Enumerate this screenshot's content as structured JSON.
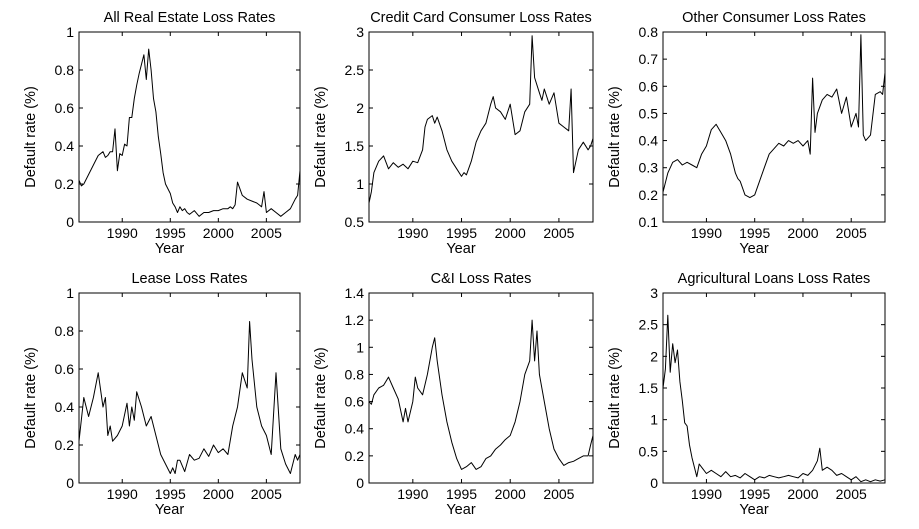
{
  "chart_data": [
    {
      "type": "line",
      "title": "All Real Estate Loss Rates",
      "xlabel": "Year",
      "ylabel": "Default rate (%)",
      "xlim": [
        1985.5,
        2008.5
      ],
      "ylim": [
        0,
        1
      ],
      "xticks": [
        1990,
        1995,
        2000,
        2005
      ],
      "xtick_labels": [
        "1990",
        "1995",
        "2000",
        "2005"
      ],
      "yticks": [
        0,
        0.2,
        0.4,
        0.6,
        0.8,
        1
      ],
      "ytick_labels": [
        "0",
        "0.2",
        "0.4",
        "0.6",
        "0.8",
        "1"
      ],
      "series": [
        {
          "x": [
            1985.5,
            1985.75,
            1986,
            1986.5,
            1987,
            1987.5,
            1988,
            1988.25,
            1988.5,
            1988.75,
            1989,
            1989.25,
            1989.5,
            1989.75,
            1990,
            1990.25,
            1990.5,
            1990.75,
            1991,
            1991.25,
            1991.5,
            1991.75,
            1992,
            1992.25,
            1992.5,
            1992.75,
            1993,
            1993.25,
            1993.5,
            1993.75,
            1994,
            1994.25,
            1994.5,
            1995,
            1995.25,
            1995.5,
            1995.75,
            1996,
            1996.25,
            1996.5,
            1996.75,
            1997,
            1997.5,
            1998,
            1998.5,
            1999,
            1999.5,
            2000,
            2000.5,
            2001,
            2001.25,
            2001.5,
            2001.75,
            2002,
            2002.5,
            2003,
            2003.5,
            2004,
            2004.25,
            2004.5,
            2004.75,
            2005,
            2005.5,
            2006,
            2006.5,
            2007,
            2007.5,
            2008,
            2008.25,
            2008.5
          ],
          "y": [
            0.22,
            0.19,
            0.2,
            0.25,
            0.3,
            0.35,
            0.37,
            0.34,
            0.35,
            0.37,
            0.37,
            0.49,
            0.27,
            0.36,
            0.35,
            0.41,
            0.4,
            0.55,
            0.55,
            0.65,
            0.72,
            0.78,
            0.83,
            0.88,
            0.75,
            0.91,
            0.8,
            0.65,
            0.58,
            0.45,
            0.36,
            0.26,
            0.2,
            0.15,
            0.1,
            0.08,
            0.05,
            0.08,
            0.06,
            0.07,
            0.05,
            0.04,
            0.06,
            0.03,
            0.05,
            0.05,
            0.06,
            0.06,
            0.07,
            0.07,
            0.08,
            0.07,
            0.09,
            0.21,
            0.14,
            0.12,
            0.11,
            0.1,
            0.09,
            0.08,
            0.16,
            0.05,
            0.07,
            0.05,
            0.03,
            0.05,
            0.07,
            0.12,
            0.14,
            0.27
          ]
        }
      ]
    },
    {
      "type": "line",
      "title": "Credit Card Consumer Loss Rates",
      "xlabel": "Year",
      "ylabel": "Default rate (%)",
      "xlim": [
        1985.5,
        2008.5
      ],
      "ylim": [
        0.5,
        3
      ],
      "xticks": [
        1990,
        1995,
        2000,
        2005
      ],
      "xtick_labels": [
        "1990",
        "1995",
        "2000",
        "2005"
      ],
      "yticks": [
        0.5,
        1,
        1.5,
        2,
        2.5,
        3
      ],
      "ytick_labels": [
        "0.5",
        "1",
        "1.5",
        "2",
        "2.5",
        "3"
      ],
      "series": [
        {
          "x": [
            1985.5,
            1985.75,
            1986,
            1986.5,
            1987,
            1987.5,
            1988,
            1988.5,
            1989,
            1989.5,
            1990,
            1990.5,
            1991,
            1991.25,
            1991.5,
            1992,
            1992.25,
            1992.5,
            1993,
            1993.5,
            1994,
            1994.5,
            1995,
            1995.25,
            1995.5,
            1996,
            1996.5,
            1997,
            1997.5,
            1998,
            1998.25,
            1998.5,
            1999,
            1999.5,
            2000,
            2000.5,
            2001,
            2001.5,
            2002,
            2002.25,
            2002.5,
            2003,
            2003.25,
            2003.5,
            2004,
            2004.5,
            2005,
            2005.5,
            2006,
            2006.25,
            2006.5,
            2007,
            2007.5,
            2008,
            2008.25,
            2008.5
          ],
          "y": [
            0.75,
            0.9,
            1.15,
            1.3,
            1.37,
            1.2,
            1.28,
            1.22,
            1.26,
            1.2,
            1.3,
            1.28,
            1.45,
            1.75,
            1.85,
            1.9,
            1.8,
            1.88,
            1.7,
            1.45,
            1.3,
            1.2,
            1.1,
            1.15,
            1.12,
            1.3,
            1.55,
            1.7,
            1.8,
            2.05,
            2.15,
            2.0,
            1.95,
            1.85,
            2.05,
            1.65,
            1.7,
            1.95,
            2.05,
            2.95,
            2.4,
            2.2,
            2.1,
            2.25,
            2.05,
            2.2,
            1.8,
            1.75,
            1.7,
            2.25,
            1.15,
            1.45,
            1.55,
            1.45,
            1.5,
            1.6
          ]
        }
      ]
    },
    {
      "type": "line",
      "title": "Other Consumer Loss Rates",
      "xlabel": "Year",
      "ylabel": "Default rate (%)",
      "xlim": [
        1985.5,
        2008.5
      ],
      "ylim": [
        0.1,
        0.8
      ],
      "xticks": [
        1990,
        1995,
        2000,
        2005
      ],
      "xtick_labels": [
        "1990",
        "1995",
        "2000",
        "2005"
      ],
      "yticks": [
        0.1,
        0.2,
        0.3,
        0.4,
        0.5,
        0.6,
        0.7,
        0.8
      ],
      "ytick_labels": [
        "0.1",
        "0.2",
        "0.3",
        "0.4",
        "0.5",
        "0.6",
        "0.7",
        "0.8"
      ],
      "series": [
        {
          "x": [
            1985.5,
            1986,
            1986.5,
            1987,
            1987.5,
            1988,
            1988.5,
            1989,
            1989.5,
            1990,
            1990.25,
            1990.5,
            1991,
            1991.5,
            1992,
            1992.5,
            1993,
            1993.25,
            1993.5,
            1994,
            1994.5,
            1995,
            1995.5,
            1996,
            1996.5,
            1997,
            1997.5,
            1998,
            1998.5,
            1999,
            1999.5,
            2000,
            2000.5,
            2000.75,
            2001,
            2001.25,
            2001.5,
            2002,
            2002.5,
            2003,
            2003.5,
            2004,
            2004.5,
            2005,
            2005.5,
            2005.75,
            2006,
            2006.25,
            2006.5,
            2007,
            2007.5,
            2008,
            2008.25,
            2008.5
          ],
          "y": [
            0.21,
            0.28,
            0.32,
            0.33,
            0.31,
            0.32,
            0.31,
            0.3,
            0.35,
            0.38,
            0.41,
            0.44,
            0.46,
            0.43,
            0.4,
            0.35,
            0.28,
            0.26,
            0.25,
            0.2,
            0.19,
            0.2,
            0.25,
            0.3,
            0.35,
            0.37,
            0.39,
            0.38,
            0.4,
            0.39,
            0.4,
            0.38,
            0.4,
            0.35,
            0.63,
            0.43,
            0.5,
            0.55,
            0.57,
            0.56,
            0.59,
            0.5,
            0.56,
            0.45,
            0.5,
            0.45,
            0.79,
            0.42,
            0.4,
            0.42,
            0.57,
            0.58,
            0.57,
            0.65
          ]
        }
      ]
    },
    {
      "type": "line",
      "title": "Lease Loss Rates",
      "xlabel": "Year",
      "ylabel": "Default rate (%)",
      "xlim": [
        1985.5,
        2008.5
      ],
      "ylim": [
        0,
        1
      ],
      "xticks": [
        1990,
        1995,
        2000,
        2005
      ],
      "xtick_labels": [
        "1990",
        "1995",
        "2000",
        "2005"
      ],
      "yticks": [
        0,
        0.2,
        0.4,
        0.6,
        0.8,
        1
      ],
      "ytick_labels": [
        "0",
        "0.2",
        "0.4",
        "0.6",
        "0.8",
        "1"
      ],
      "series": [
        {
          "x": [
            1985.5,
            1986,
            1986.5,
            1987,
            1987.5,
            1988,
            1988.25,
            1988.5,
            1988.75,
            1989,
            1989.5,
            1990,
            1990.5,
            1990.75,
            1991,
            1991.25,
            1991.5,
            1992,
            1992.5,
            1993,
            1993.5,
            1994,
            1994.5,
            1995,
            1995.25,
            1995.5,
            1995.75,
            1996,
            1996.5,
            1997,
            1997.5,
            1998,
            1998.5,
            1999,
            1999.5,
            2000,
            2000.5,
            2001,
            2001.5,
            2002,
            2002.5,
            2003,
            2003.25,
            2003.5,
            2004,
            2004.5,
            2005,
            2005.25,
            2005.5,
            2006,
            2006.5,
            2007,
            2007.5,
            2008,
            2008.25,
            2008.5
          ],
          "y": [
            0.22,
            0.45,
            0.35,
            0.45,
            0.58,
            0.4,
            0.45,
            0.25,
            0.3,
            0.22,
            0.25,
            0.3,
            0.42,
            0.3,
            0.4,
            0.33,
            0.48,
            0.4,
            0.3,
            0.35,
            0.25,
            0.15,
            0.1,
            0.05,
            0.08,
            0.05,
            0.12,
            0.12,
            0.06,
            0.15,
            0.12,
            0.13,
            0.18,
            0.14,
            0.2,
            0.16,
            0.18,
            0.15,
            0.3,
            0.4,
            0.58,
            0.5,
            0.85,
            0.65,
            0.4,
            0.3,
            0.25,
            0.2,
            0.15,
            0.58,
            0.18,
            0.1,
            0.05,
            0.15,
            0.12,
            0.15
          ]
        }
      ]
    },
    {
      "type": "line",
      "title": "C&I Loss Rates",
      "xlabel": "Year",
      "ylabel": "Default rate (%)",
      "xlim": [
        1985.5,
        2008.5
      ],
      "ylim": [
        0,
        1.4
      ],
      "xticks": [
        1990,
        1995,
        2000,
        2005
      ],
      "xtick_labels": [
        "1990",
        "1995",
        "2000",
        "2005"
      ],
      "yticks": [
        0,
        0.2,
        0.4,
        0.6,
        0.8,
        1,
        1.2,
        1.4
      ],
      "ytick_labels": [
        "0",
        "0.2",
        "0.4",
        "0.6",
        "0.8",
        "1",
        "1.2",
        "1.4"
      ],
      "series": [
        {
          "x": [
            1985.5,
            1985.75,
            1986,
            1986.5,
            1987,
            1987.5,
            1988,
            1988.5,
            1989,
            1989.25,
            1989.5,
            1990,
            1990.25,
            1990.5,
            1991,
            1991.5,
            1992,
            1992.25,
            1992.5,
            1993,
            1993.5,
            1994,
            1994.5,
            1995,
            1995.5,
            1996,
            1996.5,
            1997,
            1997.5,
            1998,
            1998.5,
            1999,
            1999.5,
            2000,
            2000.5,
            2001,
            2001.5,
            2002,
            2002.25,
            2002.5,
            2002.75,
            2003,
            2003.5,
            2004,
            2004.5,
            2005,
            2005.5,
            2006,
            2006.5,
            2007,
            2007.5,
            2008,
            2008.25,
            2008.5
          ],
          "y": [
            0.6,
            0.58,
            0.65,
            0.7,
            0.72,
            0.78,
            0.7,
            0.62,
            0.45,
            0.55,
            0.45,
            0.6,
            0.78,
            0.7,
            0.65,
            0.8,
            1.0,
            1.07,
            0.9,
            0.65,
            0.45,
            0.3,
            0.18,
            0.1,
            0.12,
            0.15,
            0.1,
            0.12,
            0.18,
            0.2,
            0.25,
            0.28,
            0.32,
            0.35,
            0.45,
            0.6,
            0.8,
            0.9,
            1.2,
            0.9,
            1.12,
            0.8,
            0.6,
            0.4,
            0.25,
            0.18,
            0.13,
            0.15,
            0.16,
            0.18,
            0.2,
            0.2,
            0.28,
            0.35
          ]
        }
      ]
    },
    {
      "type": "line",
      "title": "Agricultural Loans Loss Rates",
      "xlabel": "Year",
      "ylabel": "Default rate (%)",
      "xlim": [
        1985.5,
        2008.5
      ],
      "ylim": [
        0,
        3
      ],
      "xticks": [
        1990,
        1995,
        2000,
        2005
      ],
      "xtick_labels": [
        "1990",
        "1995",
        "2000",
        "2005"
      ],
      "yticks": [
        0,
        0.5,
        1,
        1.5,
        2,
        2.5,
        3
      ],
      "ytick_labels": [
        "0",
        "0.5",
        "1",
        "1.5",
        "2",
        "2.5",
        "3"
      ],
      "series": [
        {
          "x": [
            1985.5,
            1985.75,
            1986,
            1986.25,
            1986.5,
            1986.75,
            1987,
            1987.25,
            1987.5,
            1987.75,
            1988,
            1988.25,
            1988.5,
            1988.75,
            1989,
            1989.25,
            1989.5,
            1990,
            1990.5,
            1991,
            1991.5,
            1992,
            1992.5,
            1993,
            1993.5,
            1994,
            1994.5,
            1995,
            1995.5,
            1996,
            1996.5,
            1997,
            1997.5,
            1998,
            1998.5,
            1999,
            1999.5,
            2000,
            2000.5,
            2001,
            2001.5,
            2001.75,
            2002,
            2002.5,
            2003,
            2003.5,
            2004,
            2004.5,
            2005,
            2005.5,
            2006,
            2006.5,
            2007,
            2007.5,
            2008,
            2008.5
          ],
          "y": [
            1.5,
            1.8,
            2.65,
            1.75,
            2.2,
            1.9,
            2.1,
            1.6,
            1.3,
            0.95,
            0.9,
            0.6,
            0.4,
            0.25,
            0.1,
            0.3,
            0.25,
            0.15,
            0.2,
            0.15,
            0.1,
            0.18,
            0.1,
            0.12,
            0.08,
            0.15,
            0.1,
            0.05,
            0.1,
            0.08,
            0.12,
            0.1,
            0.08,
            0.1,
            0.12,
            0.1,
            0.08,
            0.15,
            0.12,
            0.2,
            0.35,
            0.55,
            0.2,
            0.25,
            0.2,
            0.12,
            0.15,
            0.1,
            0.05,
            0.1,
            0.02,
            0.05,
            0.02,
            0.05,
            0.03,
            0.05
          ]
        }
      ]
    }
  ]
}
